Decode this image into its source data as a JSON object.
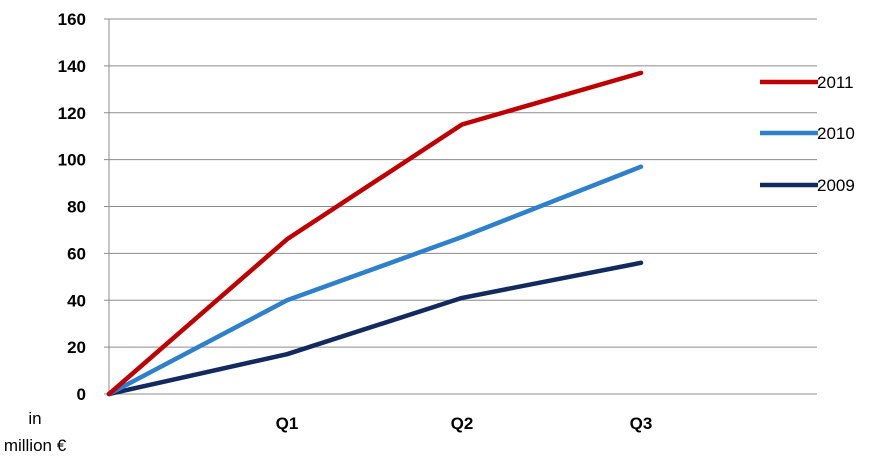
{
  "chart_data": {
    "type": "line",
    "categories": [
      "",
      "Q1",
      "Q2",
      "Q3"
    ],
    "ylim": [
      0,
      160
    ],
    "yticks": [
      0,
      20,
      40,
      60,
      80,
      100,
      120,
      140,
      160
    ],
    "grid": true,
    "legend_position": "right",
    "ylabel_line1": "in",
    "ylabel_line2": "million €",
    "series": [
      {
        "name": "2011",
        "color": "#C00000",
        "values": [
          0,
          66,
          115,
          137
        ]
      },
      {
        "name": "2010",
        "color": "#2E7FCC",
        "values": [
          0,
          40,
          67,
          97
        ]
      },
      {
        "name": "2009",
        "color": "#132A5E",
        "values": [
          0,
          17,
          41,
          56
        ]
      }
    ]
  }
}
